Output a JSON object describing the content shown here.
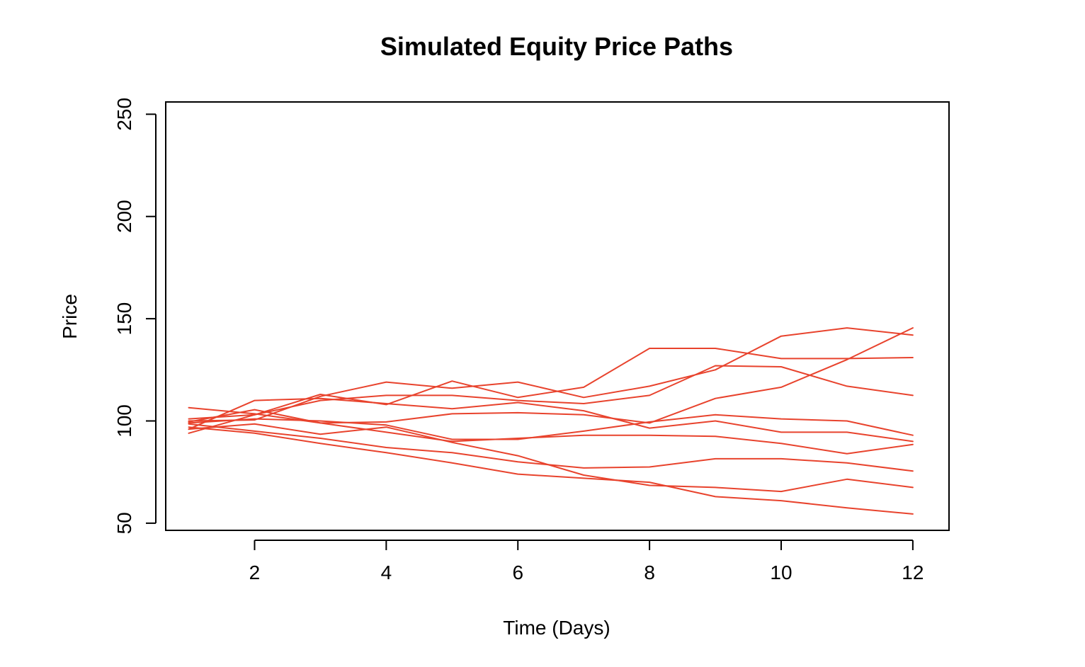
{
  "chart_data": {
    "type": "line",
    "title": "Simulated Equity Price Paths",
    "xlabel": "Time (Days)",
    "ylabel": "Price",
    "xlim": [
      0.65,
      12.55
    ],
    "ylim": [
      46.5,
      256
    ],
    "x_ticks": [
      2,
      4,
      6,
      8,
      10,
      12
    ],
    "y_ticks": [
      50,
      100,
      150,
      200,
      250
    ],
    "grid": false,
    "legend": "none",
    "line_color": "#e8432d",
    "x": [
      1,
      2,
      3,
      4,
      5,
      6,
      7,
      8,
      9,
      10,
      11,
      12
    ],
    "series": [
      {
        "values": [
          96,
          110,
          111,
          108.5,
          106,
          109,
          105,
          96.5,
          100,
          94.5,
          94.5,
          90
        ]
      },
      {
        "values": [
          100,
          100.5,
          112,
          119,
          116,
          119,
          111.5,
          117,
          125,
          141.5,
          145.5,
          142
        ]
      },
      {
        "values": [
          101,
          103,
          110,
          112.5,
          112.5,
          110,
          108.5,
          112.5,
          127,
          126.5,
          117,
          112.5
        ]
      },
      {
        "values": [
          94,
          103,
          113,
          108,
          119.5,
          111.5,
          116.5,
          135.5,
          135.5,
          130.5,
          130.5,
          131
        ]
      },
      {
        "values": [
          106.5,
          103.5,
          99,
          99.5,
          103.5,
          104,
          103,
          99,
          111,
          116.5,
          130,
          145.5
        ]
      },
      {
        "values": [
          99,
          101,
          100,
          98,
          91,
          91,
          95,
          99.5,
          103,
          101,
          100,
          93
        ]
      },
      {
        "values": [
          99.5,
          105.5,
          99,
          94.5,
          90,
          91.5,
          93,
          93,
          92.5,
          89,
          84,
          88.5
        ]
      },
      {
        "values": [
          97,
          94,
          89,
          84.5,
          79.5,
          74,
          72,
          70,
          63,
          61,
          57.5,
          54.5
        ]
      },
      {
        "values": [
          96,
          98.5,
          93.5,
          97,
          89.5,
          83,
          73.5,
          68.5,
          67.5,
          65.5,
          71.5,
          67.5
        ]
      },
      {
        "values": [
          98.5,
          95,
          91.5,
          87,
          84.5,
          80,
          77,
          77.5,
          81.5,
          81.5,
          79.5,
          75.5
        ]
      }
    ]
  }
}
